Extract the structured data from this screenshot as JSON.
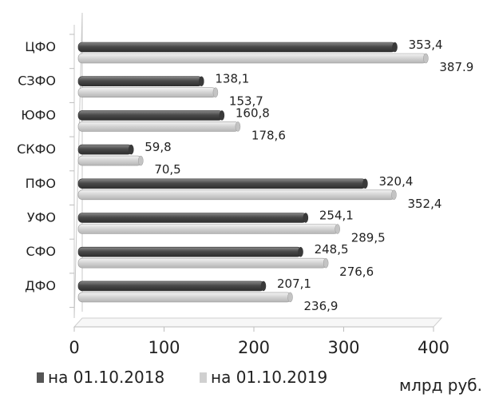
{
  "chart_data": {
    "type": "bar",
    "orientation": "horizontal",
    "categories": [
      "ЦФО",
      "СЗФО",
      "ЮФО",
      "СКФО",
      "ПФО",
      "УФО",
      "СФО",
      "ДФО"
    ],
    "series": [
      {
        "name": "на 01.10.2018",
        "values": [
          353.4,
          138.1,
          160.8,
          59.8,
          320.4,
          254.1,
          248.5,
          207.1
        ],
        "labels": [
          "353,4",
          "138,1",
          "160,8",
          "59,8",
          "320,4",
          "254,1",
          "248,5",
          "207,1"
        ],
        "color": "#555555"
      },
      {
        "name": "на 01.10.2019",
        "values": [
          387.9,
          153.7,
          178.6,
          70.5,
          352.4,
          289.5,
          276.6,
          236.9
        ],
        "labels": [
          "387.9",
          "153,7",
          "178,6",
          "70,5",
          "352,4",
          "289,5",
          "276,6",
          "236,9"
        ],
        "color": "#d0d0d0"
      }
    ],
    "x_ticks": [
      "0",
      "100",
      "200",
      "300",
      "400"
    ],
    "xlim": [
      0,
      400
    ],
    "unit_label": "млрд руб.",
    "grid": false,
    "legend_position": "bottom-left",
    "style": "3d"
  }
}
